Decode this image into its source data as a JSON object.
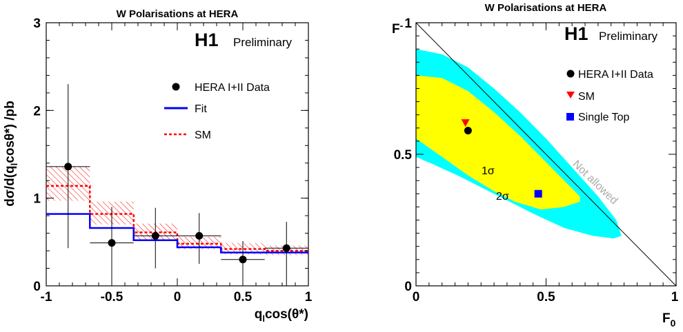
{
  "chart_data": [
    {
      "type": "bar",
      "title": "W Polarisations at HERA",
      "xlabel": "q_l cos(θ*)",
      "ylabel": "dσ/d(q_l cosθ*) /pb",
      "xlim": [
        -1,
        1
      ],
      "ylim": [
        0,
        3
      ],
      "x_ticks": [
        "-1",
        "-0.5",
        "0",
        "0.5",
        "1"
      ],
      "y_ticks": [
        "0",
        "1",
        "2",
        "3"
      ],
      "experiment": "H1",
      "status": "Preliminary",
      "bin_edges": [
        -1,
        -0.667,
        -0.333,
        0,
        0.333,
        0.667,
        1
      ],
      "series": [
        {
          "name": "HERA I+II Data",
          "style": "points",
          "x": [
            -0.833,
            -0.5,
            -0.167,
            0.167,
            0.5,
            0.833
          ],
          "y": [
            1.36,
            0.49,
            0.57,
            0.57,
            0.3,
            0.43
          ],
          "yerr_low": [
            0.93,
            0.49,
            0.37,
            0.32,
            0.3,
            0.43
          ],
          "yerr_high": [
            0.94,
            0.41,
            0.32,
            0.26,
            0.21,
            0.3
          ],
          "xerr": 0.1667,
          "color": "#000000"
        },
        {
          "name": "Fit",
          "style": "step",
          "values": [
            0.82,
            0.66,
            0.52,
            0.44,
            0.38,
            0.38
          ],
          "color": "#0000ff"
        },
        {
          "name": "SM",
          "style": "dashed-step",
          "values": [
            1.14,
            0.82,
            0.61,
            0.48,
            0.42,
            0.4
          ],
          "band_low": [
            0.97,
            0.7,
            0.52,
            0.42,
            0.36,
            0.35
          ],
          "band_high": [
            1.36,
            0.96,
            0.71,
            0.56,
            0.49,
            0.46
          ],
          "color": "#ff0000"
        }
      ],
      "legend": "top-right"
    },
    {
      "type": "scatter",
      "title": "W Polarisations at HERA",
      "xlabel": "F0",
      "ylabel": "F-",
      "xlim": [
        0,
        1
      ],
      "ylim": [
        0,
        1
      ],
      "x_ticks": [
        "0",
        "0.5",
        "1"
      ],
      "y_ticks": [
        "0",
        "0.5",
        "1"
      ],
      "experiment": "H1",
      "status": "Preliminary",
      "boundary": {
        "label": "Not allowed",
        "line": "F0 + F- = 1"
      },
      "contours": [
        {
          "label": "1σ",
          "color": "#ffff00"
        },
        {
          "label": "2σ",
          "color": "#00ffff"
        }
      ],
      "contour_1sigma": [
        [
          0.0,
          0.8
        ],
        [
          0.1,
          0.79
        ],
        [
          0.2,
          0.74
        ],
        [
          0.3,
          0.66
        ],
        [
          0.4,
          0.57
        ],
        [
          0.5,
          0.47
        ],
        [
          0.58,
          0.39
        ],
        [
          0.63,
          0.34
        ],
        [
          0.63,
          0.32
        ],
        [
          0.57,
          0.3
        ],
        [
          0.48,
          0.29
        ],
        [
          0.38,
          0.32
        ],
        [
          0.3,
          0.36
        ],
        [
          0.2,
          0.42
        ],
        [
          0.1,
          0.49
        ],
        [
          0.0,
          0.56
        ]
      ],
      "contour_2sigma": [
        [
          0.0,
          0.9
        ],
        [
          0.1,
          0.88
        ],
        [
          0.2,
          0.83
        ],
        [
          0.3,
          0.75
        ],
        [
          0.4,
          0.66
        ],
        [
          0.5,
          0.56
        ],
        [
          0.6,
          0.45
        ],
        [
          0.7,
          0.34
        ],
        [
          0.77,
          0.25
        ],
        [
          0.79,
          0.19
        ],
        [
          0.76,
          0.18
        ],
        [
          0.68,
          0.19
        ],
        [
          0.57,
          0.22
        ],
        [
          0.46,
          0.27
        ],
        [
          0.36,
          0.32
        ],
        [
          0.26,
          0.37
        ],
        [
          0.16,
          0.42
        ],
        [
          0.07,
          0.46
        ],
        [
          0.0,
          0.49
        ]
      ],
      "series": [
        {
          "name": "HERA I+II Data",
          "marker": "circle",
          "color": "#000000",
          "x": [
            0.2
          ],
          "y": [
            0.59
          ]
        },
        {
          "name": "SM",
          "marker": "triangle-down",
          "color": "#ff0000",
          "x": [
            0.19
          ],
          "y": [
            0.62
          ]
        },
        {
          "name": "Single Top",
          "marker": "square",
          "color": "#0000ff",
          "x": [
            0.47
          ],
          "y": [
            0.35
          ]
        }
      ],
      "legend": "top-right"
    }
  ]
}
